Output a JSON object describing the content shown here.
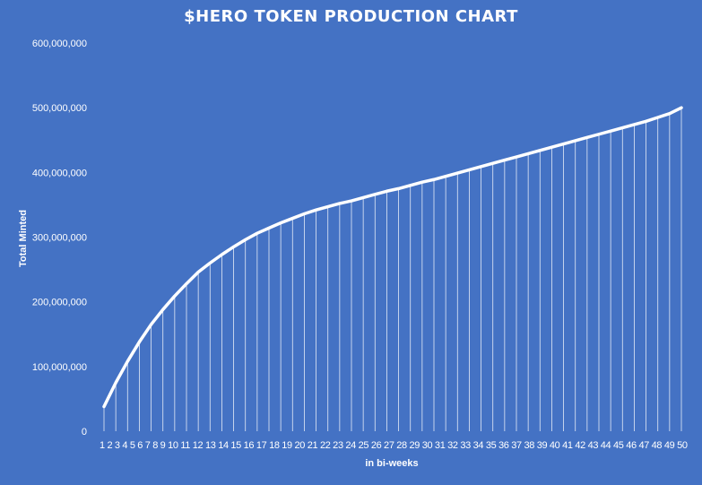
{
  "chart_data": {
    "type": "area",
    "title": "$HERO TOKEN PRODUCTION CHART",
    "xlabel": "in bi-weeks",
    "ylabel": "Total Minted",
    "ylim": [
      0,
      600000000
    ],
    "yticks": [
      {
        "value": 0,
        "label": "0"
      },
      {
        "value": 100000000,
        "label": "100,000,000"
      },
      {
        "value": 200000000,
        "label": "200,000,000"
      },
      {
        "value": 300000000,
        "label": "300,000,000"
      },
      {
        "value": 400000000,
        "label": "400,000,000"
      },
      {
        "value": 500000000,
        "label": "500,000,000"
      },
      {
        "value": 600000000,
        "label": "600,000,000"
      }
    ],
    "x_tick_text": "1 2 3 4 5 6 7 8 9 10 11 12 13 14 15 16 17 18 19 20 21 22 23 24 25 26 27 28 29 30 31 32 33 34 35 36 37 38 39 40 41 42 43 44 45 46 47 48 49 50",
    "x": [
      1,
      2,
      3,
      4,
      5,
      6,
      7,
      8,
      9,
      10,
      11,
      12,
      13,
      14,
      15,
      16,
      17,
      18,
      19,
      20,
      21,
      22,
      23,
      24,
      25,
      26,
      27,
      28,
      29,
      30,
      31,
      32,
      33,
      34,
      35,
      36,
      37,
      38,
      39,
      40,
      41,
      42,
      43,
      44,
      45,
      46,
      47,
      48,
      49,
      50
    ],
    "series": [
      {
        "values": [
          38000000,
          75000000,
          108000000,
          138000000,
          165000000,
          188000000,
          209000000,
          228000000,
          246000000,
          260000000,
          273000000,
          285000000,
          296000000,
          306000000,
          314000000,
          322000000,
          329000000,
          336000000,
          342000000,
          347000000,
          352000000,
          356000000,
          361000000,
          366000000,
          371000000,
          375000000,
          380000000,
          385000000,
          389000000,
          394000000,
          399000000,
          404000000,
          409000000,
          414000000,
          419000000,
          424000000,
          429000000,
          434000000,
          439000000,
          444000000,
          449000000,
          454000000,
          459000000,
          464000000,
          469000000,
          474000000,
          479000000,
          485000000,
          491000000,
          500000000
        ]
      }
    ],
    "grid": false,
    "legend": "none",
    "colors": {
      "background": "#4472C4",
      "line": "#FFFFFF",
      "text": "#FFFFFF"
    }
  }
}
